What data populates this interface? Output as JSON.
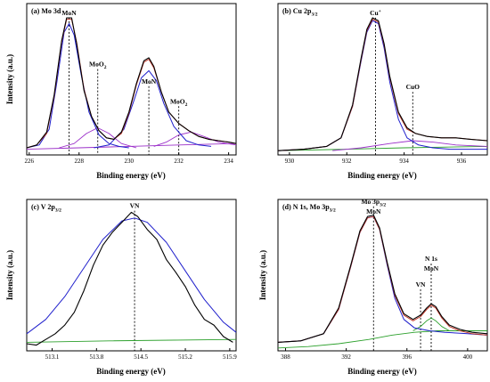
{
  "chart_data": [
    {
      "type": "line",
      "panel_label": "(a) Mo 3d",
      "xlabel": "Binding energy (eV)",
      "ylabel": "Intensity (a.u.)",
      "xlim": [
        225.9,
        234.3
      ],
      "ylim": [
        0,
        1.06
      ],
      "xticks": [
        226,
        228,
        230,
        232,
        234
      ],
      "annotations": [
        {
          "text": "MoN",
          "x": 227.6,
          "y": 0.98
        },
        {
          "text": "MoO2",
          "x": 228.75,
          "y": 0.62
        },
        {
          "text": "MoN",
          "x": 230.8,
          "y": 0.5
        },
        {
          "text": "MoO2",
          "x": 232.0,
          "y": 0.36
        }
      ],
      "dashed_lines": [
        227.6,
        228.75,
        230.8,
        232.0
      ],
      "colors": {
        "raw": "#000000",
        "fit": "#c0392b",
        "component": "#1f1fcc",
        "component_alt": "#9b2fc9",
        "background": "#9b2fc9"
      },
      "series": [
        {
          "role": "raw",
          "x": [
            225.9,
            226.3,
            226.7,
            227.0,
            227.3,
            227.5,
            227.7,
            227.9,
            228.2,
            228.5,
            228.8,
            229.1,
            229.4,
            229.7,
            230.0,
            230.3,
            230.6,
            230.8,
            231.0,
            231.3,
            231.6,
            232.0,
            232.4,
            232.8,
            233.2,
            233.6,
            234.0,
            234.3
          ],
          "y": [
            0.05,
            0.07,
            0.16,
            0.42,
            0.8,
            0.96,
            0.96,
            0.78,
            0.45,
            0.27,
            0.17,
            0.12,
            0.11,
            0.16,
            0.3,
            0.5,
            0.66,
            0.68,
            0.62,
            0.44,
            0.3,
            0.22,
            0.17,
            0.13,
            0.11,
            0.1,
            0.09,
            0.08
          ]
        },
        {
          "role": "fit",
          "x": [
            225.9,
            226.3,
            226.7,
            227.0,
            227.3,
            227.5,
            227.7,
            227.9,
            228.2,
            228.5,
            228.8,
            229.1,
            229.4,
            229.7,
            230.0,
            230.3,
            230.6,
            230.8,
            231.0,
            231.3,
            231.6,
            232.0,
            232.4,
            232.8,
            233.2,
            233.6,
            234.0,
            234.3
          ],
          "y": [
            0.05,
            0.07,
            0.15,
            0.41,
            0.79,
            0.95,
            0.95,
            0.79,
            0.46,
            0.27,
            0.17,
            0.12,
            0.11,
            0.15,
            0.29,
            0.49,
            0.65,
            0.67,
            0.61,
            0.44,
            0.3,
            0.22,
            0.17,
            0.13,
            0.11,
            0.1,
            0.09,
            0.08
          ]
        },
        {
          "role": "component",
          "x": [
            225.9,
            226.4,
            226.8,
            227.1,
            227.4,
            227.6,
            227.8,
            228.1,
            228.4,
            228.8,
            229.2,
            229.6,
            230.0
          ],
          "y": [
            0.05,
            0.07,
            0.18,
            0.5,
            0.86,
            0.92,
            0.84,
            0.55,
            0.3,
            0.14,
            0.08,
            0.06,
            0.05
          ]
        },
        {
          "role": "component",
          "x": [
            228.6,
            229.2,
            229.8,
            230.2,
            230.5,
            230.8,
            231.1,
            231.4,
            231.8,
            232.3,
            232.8,
            233.3
          ],
          "y": [
            0.05,
            0.07,
            0.18,
            0.38,
            0.54,
            0.59,
            0.52,
            0.36,
            0.2,
            0.1,
            0.07,
            0.06
          ]
        },
        {
          "role": "component_alt",
          "x": [
            227.2,
            227.8,
            228.3,
            228.75,
            229.2,
            229.7,
            230.3
          ],
          "y": [
            0.05,
            0.08,
            0.15,
            0.19,
            0.15,
            0.08,
            0.05
          ]
        },
        {
          "role": "component_alt",
          "x": [
            231.0,
            231.5,
            232.0,
            232.5,
            233.0,
            233.6,
            234.3
          ],
          "y": [
            0.06,
            0.09,
            0.14,
            0.16,
            0.13,
            0.09,
            0.07
          ]
        },
        {
          "role": "background",
          "x": [
            225.9,
            228.0,
            230.0,
            232.0,
            234.3
          ],
          "y": [
            0.04,
            0.05,
            0.06,
            0.07,
            0.08
          ]
        }
      ]
    },
    {
      "type": "line",
      "panel_label": "(b) Cu 2p3/2",
      "xlabel": "Binding energy (eV)",
      "ylabel": "",
      "xlim": [
        929.6,
        936.9
      ],
      "ylim": [
        0,
        1.06
      ],
      "xticks": [
        930,
        932,
        934,
        936
      ],
      "annotations": [
        {
          "text": "Cu+",
          "x": 933.0,
          "y": 0.98
        },
        {
          "text": "CuO",
          "x": 934.3,
          "y": 0.46
        }
      ],
      "dashed_lines": [
        933.0,
        934.3
      ],
      "colors": {
        "raw": "#000000",
        "fit": "#c0392b",
        "component": "#1f1fcc",
        "component_alt": "#9b2fc9",
        "background": "#2ca02c"
      },
      "series": [
        {
          "role": "raw",
          "x": [
            929.6,
            930.5,
            931.3,
            931.8,
            932.2,
            932.5,
            932.7,
            932.9,
            933.1,
            933.3,
            933.5,
            933.8,
            934.1,
            934.4,
            934.8,
            935.3,
            935.8,
            936.3,
            936.9
          ],
          "y": [
            0.03,
            0.04,
            0.06,
            0.12,
            0.35,
            0.68,
            0.88,
            0.96,
            0.94,
            0.78,
            0.55,
            0.3,
            0.19,
            0.15,
            0.13,
            0.12,
            0.12,
            0.11,
            0.1
          ]
        },
        {
          "role": "fit",
          "x": [
            929.6,
            930.5,
            931.3,
            931.8,
            932.2,
            932.5,
            932.7,
            932.9,
            933.1,
            933.3,
            933.5,
            933.8,
            934.1,
            934.4,
            934.8,
            935.3,
            935.8,
            936.3,
            936.9
          ],
          "y": [
            0.03,
            0.04,
            0.06,
            0.12,
            0.34,
            0.67,
            0.87,
            0.95,
            0.93,
            0.77,
            0.54,
            0.29,
            0.18,
            0.15,
            0.13,
            0.12,
            0.12,
            0.11,
            0.1
          ]
        },
        {
          "role": "component",
          "x": [
            929.6,
            930.5,
            931.3,
            931.8,
            932.2,
            932.5,
            932.7,
            932.9,
            933.1,
            933.3,
            933.5,
            933.8,
            934.1,
            934.5,
            935.0,
            935.6,
            936.9
          ],
          "y": [
            0.03,
            0.04,
            0.06,
            0.12,
            0.34,
            0.66,
            0.86,
            0.94,
            0.92,
            0.75,
            0.51,
            0.25,
            0.12,
            0.07,
            0.05,
            0.04,
            0.04
          ]
        },
        {
          "role": "component_alt",
          "x": [
            931.5,
            932.5,
            933.5,
            934.3,
            935.0,
            935.8,
            936.9
          ],
          "y": [
            0.03,
            0.05,
            0.08,
            0.1,
            0.09,
            0.07,
            0.06
          ]
        },
        {
          "role": "background",
          "x": [
            929.6,
            932.0,
            934.0,
            936.9
          ],
          "y": [
            0.03,
            0.04,
            0.05,
            0.06
          ]
        }
      ]
    },
    {
      "type": "line",
      "panel_label": "(c) V 2p3/2",
      "xlabel": "Binding energy (eV)",
      "ylabel": "Intensity (a.u.)",
      "xlim": [
        512.7,
        516.0
      ],
      "ylim": [
        0,
        1.06
      ],
      "xticks": [
        513.1,
        513.8,
        514.5,
        515.2,
        515.9
      ],
      "annotations": [
        {
          "text": "VN",
          "x": 514.4,
          "y": 1.0
        }
      ],
      "dashed_lines": [
        514.4
      ],
      "colors": {
        "raw": "#000000",
        "component": "#1f1fcc",
        "background": "#2ca02c"
      },
      "series": [
        {
          "role": "raw",
          "x": [
            512.7,
            512.85,
            513.0,
            513.15,
            513.3,
            513.45,
            513.6,
            513.75,
            513.9,
            514.05,
            514.2,
            514.35,
            514.45,
            514.6,
            514.75,
            514.9,
            515.05,
            515.2,
            515.35,
            515.5,
            515.65,
            515.8,
            515.95
          ],
          "y": [
            0.05,
            0.04,
            0.08,
            0.12,
            0.18,
            0.27,
            0.42,
            0.6,
            0.74,
            0.83,
            0.9,
            0.97,
            0.94,
            0.85,
            0.78,
            0.64,
            0.55,
            0.45,
            0.32,
            0.22,
            0.18,
            0.1,
            0.06
          ]
        },
        {
          "role": "component",
          "x": [
            512.7,
            513.0,
            513.3,
            513.6,
            513.9,
            514.2,
            514.4,
            514.6,
            514.9,
            515.2,
            515.5,
            515.8,
            516.0
          ],
          "y": [
            0.12,
            0.22,
            0.38,
            0.58,
            0.78,
            0.91,
            0.93,
            0.9,
            0.76,
            0.56,
            0.36,
            0.2,
            0.13
          ]
        },
        {
          "role": "background",
          "x": [
            512.7,
            514.0,
            516.0
          ],
          "y": [
            0.06,
            0.07,
            0.08
          ]
        }
      ]
    },
    {
      "type": "line",
      "panel_label": "(d) N 1s, Mo 3p3/2",
      "xlabel": "Binding energy (eV)",
      "ylabel": "Intensity (a.u.)",
      "xlim": [
        387.5,
        401.3
      ],
      "ylim": [
        0,
        1.06
      ],
      "xticks": [
        388,
        392,
        396,
        400
      ],
      "annotations": [
        {
          "text": "Mo 3p3/2",
          "x": 393.8,
          "y": 1.03
        },
        {
          "text": "MoN",
          "x": 393.8,
          "y": 0.96
        },
        {
          "text": "VN",
          "x": 396.9,
          "y": 0.45
        },
        {
          "text": "N 1s",
          "x": 397.6,
          "y": 0.63
        },
        {
          "text": "MoN",
          "x": 397.6,
          "y": 0.56
        }
      ],
      "dashed_lines": [
        393.8,
        396.9,
        397.6
      ],
      "colors": {
        "raw": "#000000",
        "fit": "#c0392b",
        "component": "#1f1fcc",
        "component_alt": "#2ca02c",
        "background": "#2ca02c"
      },
      "series": [
        {
          "role": "raw",
          "x": [
            387.5,
            389.0,
            390.5,
            391.5,
            392.3,
            392.9,
            393.4,
            393.8,
            394.2,
            394.7,
            395.2,
            395.8,
            396.4,
            396.9,
            397.3,
            397.6,
            397.9,
            398.3,
            398.8,
            399.5,
            400.3,
            401.3
          ],
          "y": [
            0.06,
            0.07,
            0.12,
            0.3,
            0.6,
            0.84,
            0.94,
            0.95,
            0.86,
            0.62,
            0.4,
            0.26,
            0.22,
            0.25,
            0.3,
            0.33,
            0.31,
            0.24,
            0.18,
            0.15,
            0.13,
            0.12
          ]
        },
        {
          "role": "fit",
          "x": [
            387.5,
            389.0,
            390.5,
            391.5,
            392.3,
            392.9,
            393.4,
            393.8,
            394.2,
            394.7,
            395.2,
            395.8,
            396.4,
            396.9,
            397.3,
            397.6,
            397.9,
            398.3,
            398.8,
            399.5,
            400.3,
            401.3
          ],
          "y": [
            0.06,
            0.07,
            0.12,
            0.29,
            0.59,
            0.83,
            0.93,
            0.94,
            0.85,
            0.61,
            0.39,
            0.25,
            0.21,
            0.24,
            0.29,
            0.32,
            0.3,
            0.23,
            0.17,
            0.14,
            0.12,
            0.11
          ]
        },
        {
          "role": "component",
          "x": [
            387.5,
            389.0,
            390.5,
            391.5,
            392.3,
            392.9,
            393.4,
            393.8,
            394.2,
            394.7,
            395.2,
            395.8,
            396.5,
            397.5,
            398.5,
            400.0,
            401.3
          ],
          "y": [
            0.06,
            0.07,
            0.12,
            0.29,
            0.59,
            0.83,
            0.93,
            0.94,
            0.85,
            0.6,
            0.37,
            0.22,
            0.16,
            0.14,
            0.13,
            0.12,
            0.11
          ]
        },
        {
          "role": "component_alt",
          "x": [
            396.4,
            396.9,
            397.3,
            397.6,
            397.9,
            398.3,
            398.8
          ],
          "y": [
            0.14,
            0.17,
            0.21,
            0.23,
            0.21,
            0.17,
            0.14
          ]
        },
        {
          "role": "background",
          "x": [
            387.5,
            389.5,
            391.5,
            393.5,
            395.0,
            396.5,
            398.0,
            399.5,
            401.3
          ],
          "y": [
            0.02,
            0.03,
            0.05,
            0.08,
            0.11,
            0.13,
            0.14,
            0.14,
            0.14
          ]
        }
      ]
    }
  ]
}
